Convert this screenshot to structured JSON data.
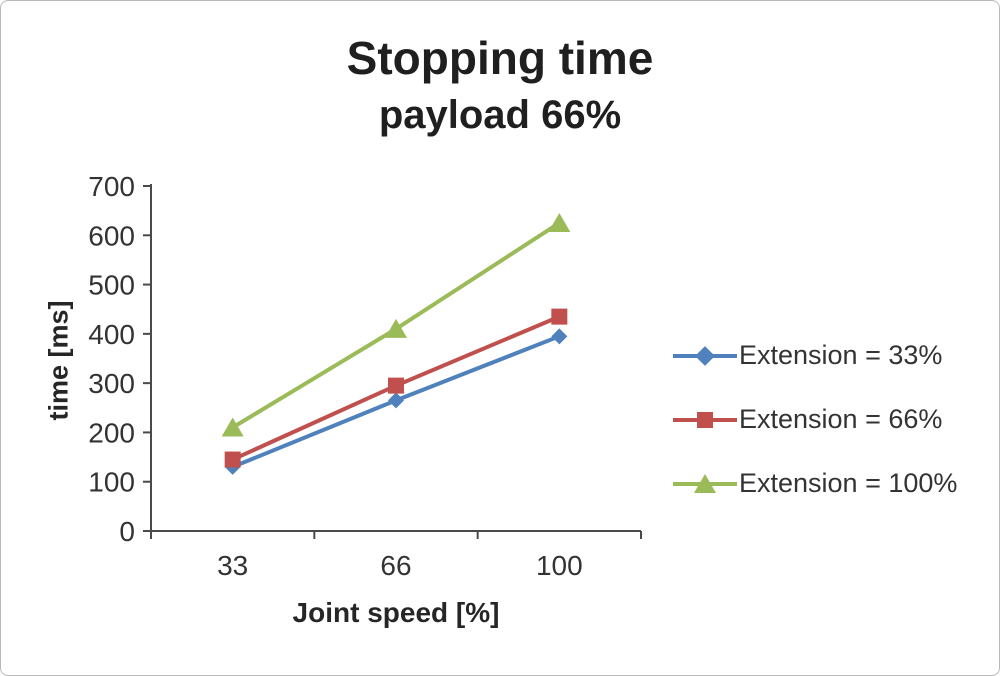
{
  "chart_data": {
    "type": "line",
    "title": "Stopping time",
    "subtitle": "payload 66%",
    "xlabel": "Joint speed [%]",
    "ylabel": "time [ms]",
    "categories": [
      "33",
      "66",
      "100"
    ],
    "y_ticks": [
      0,
      100,
      200,
      300,
      400,
      500,
      600,
      700
    ],
    "ylim": [
      0,
      700
    ],
    "grid": false,
    "legend_position": "right",
    "axis_color": "#4a4a4a",
    "tick_label_color": "#333333",
    "series": [
      {
        "name": "Extension = 33%",
        "color": "#4F81BD",
        "marker": "diamond",
        "values": [
          130,
          265,
          395
        ]
      },
      {
        "name": "Extension = 66%",
        "color": "#C0504D",
        "marker": "square",
        "values": [
          145,
          295,
          435
        ]
      },
      {
        "name": "Extension = 100%",
        "color": "#9BBB59",
        "marker": "triangle",
        "values": [
          210,
          410,
          625
        ]
      }
    ]
  }
}
